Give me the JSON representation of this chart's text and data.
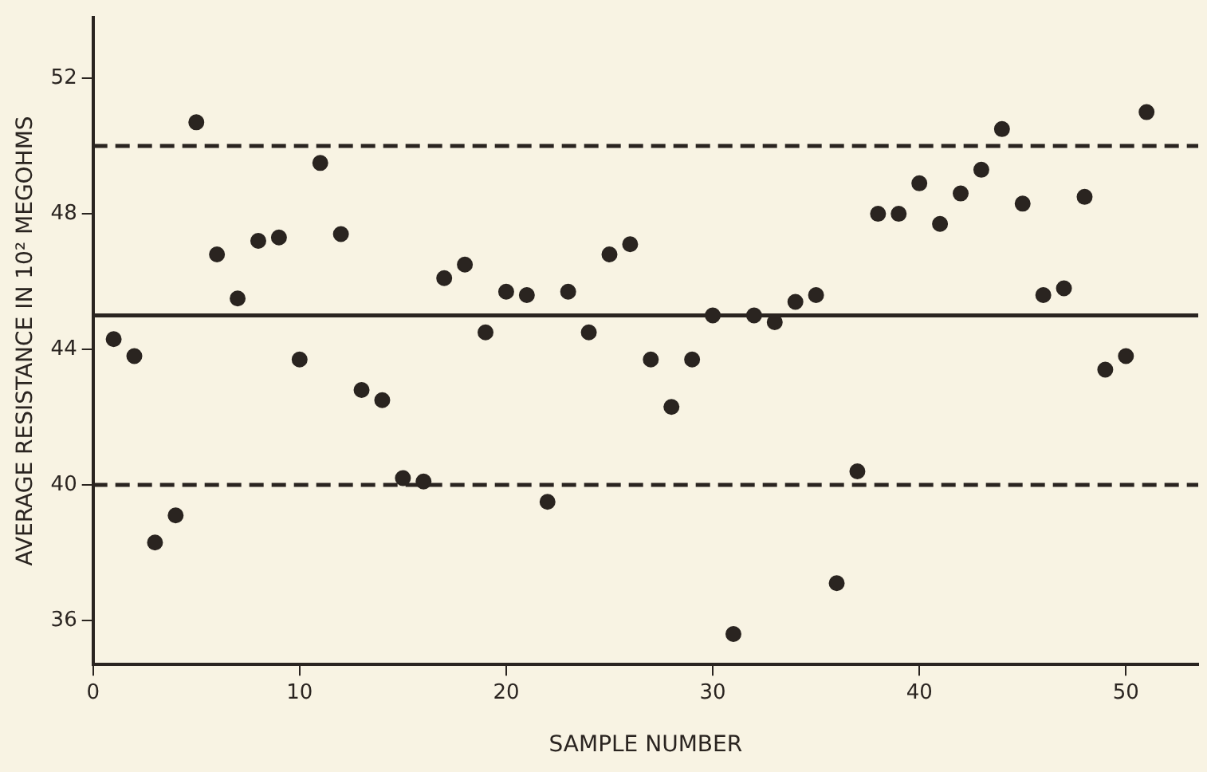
{
  "chart_data": {
    "type": "scatter",
    "xlabel": "SAMPLE NUMBER",
    "ylabel": "AVERAGE RESISTANCE IN 10² MEGOHMS",
    "x": [
      1,
      2,
      3,
      4,
      5,
      6,
      7,
      8,
      9,
      10,
      11,
      12,
      13,
      14,
      15,
      16,
      17,
      18,
      19,
      20,
      21,
      22,
      23,
      24,
      25,
      26,
      27,
      28,
      29,
      30,
      31,
      32,
      33,
      34,
      35,
      36,
      37,
      38,
      39,
      40,
      41,
      42,
      43,
      44,
      45,
      46,
      47,
      48,
      49,
      50,
      51
    ],
    "series": [
      {
        "color": "#2a2420",
        "values": [
          44.3,
          43.8,
          38.3,
          39.1,
          50.7,
          46.8,
          45.5,
          47.2,
          47.3,
          43.7,
          49.5,
          47.4,
          42.8,
          42.5,
          40.2,
          40.1,
          46.1,
          46.5,
          44.5,
          45.7,
          45.6,
          39.5,
          45.7,
          44.5,
          46.8,
          47.1,
          43.7,
          42.3,
          43.7,
          45.0,
          35.6,
          45.0,
          44.8,
          45.4,
          45.6,
          37.1,
          40.4,
          48.0,
          48.0,
          48.9,
          47.7,
          48.6,
          49.3,
          50.5,
          48.3,
          45.6,
          45.8,
          48.5,
          43.4,
          43.8,
          51.0
        ]
      }
    ],
    "xlim": [
      0,
      53.5
    ],
    "xticks": [
      0,
      10,
      20,
      30,
      40,
      50
    ],
    "ylim": [
      34.7,
      53.8
    ],
    "yticks": [
      36,
      40,
      44,
      48,
      52
    ],
    "ref_lines": [
      {
        "axis": "y",
        "value": 50,
        "line_style": "dashed"
      },
      {
        "axis": "y",
        "value": 45,
        "line_style": "solid"
      },
      {
        "axis": "y",
        "value": 40,
        "line_style": "dashed"
      }
    ],
    "grid": false,
    "legend": false,
    "marker": "circle"
  }
}
